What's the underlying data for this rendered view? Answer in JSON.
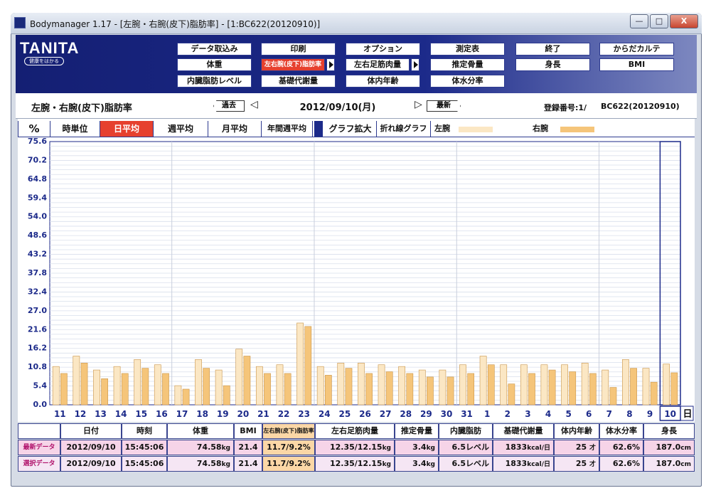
{
  "window": {
    "title": "Bodymanager 1.17 - [左腕・右腕(皮下)脂肪率] - [1:BC622(20120910)]",
    "controls": {
      "minimize": "—",
      "maximize": "□",
      "close": "X"
    }
  },
  "header": {
    "logo": "TANITA",
    "logo_sub": "健康をはかる",
    "buttons": [
      "データ取込み",
      "印刷",
      "オプション",
      "測定表",
      "終了",
      "からだカルテ",
      "体重",
      "左右腕(皮下)脂肪率",
      "左右足筋肉量",
      "推定骨量",
      "身長",
      "BMI",
      "内臓脂肪レベル",
      "基礎代謝量",
      "体内年齢",
      "体水分率"
    ]
  },
  "nav": {
    "page_title": "左腕・右腕(皮下)脂肪率",
    "prev": "過去",
    "date": "2012/09/10(月)",
    "next": "最新",
    "reg_label": "登録番号:1/",
    "reg_value": "BC622(20120910)"
  },
  "tabs": {
    "unit": "%",
    "items": [
      "時単位",
      "日平均",
      "週平均",
      "月平均",
      "年間週平均",
      "グラフ拡大",
      "折れ線グラフ"
    ],
    "legend_left": "左腕",
    "legend_right": "右腕",
    "day_unit": "日"
  },
  "colors": {
    "left_arm": "#fbe7c4",
    "right_arm": "#f5c57a",
    "bar_border": "#c9954a",
    "accent_red": "#e6402e",
    "brand_navy": "#1c2a8a"
  },
  "chart_data": {
    "type": "bar",
    "ylabel": "%",
    "ylim": [
      0,
      75.6
    ],
    "yticks": [
      "75.6",
      "70.2",
      "64.8",
      "59.4",
      "54.0",
      "48.6",
      "43.2",
      "37.8",
      "32.4",
      "27.0",
      "21.6",
      "16.2",
      "10.8",
      "5.4",
      "0.0"
    ],
    "categories": [
      "11",
      "12",
      "13",
      "14",
      "15",
      "16",
      "17",
      "18",
      "19",
      "20",
      "21",
      "22",
      "23",
      "24",
      "25",
      "26",
      "27",
      "28",
      "29",
      "30",
      "31",
      "1",
      "2",
      "3",
      "4",
      "5",
      "6",
      "7",
      "8",
      "9",
      "10"
    ],
    "series": [
      {
        "name": "左腕",
        "values": [
          11.0,
          14.0,
          10.0,
          11.0,
          13.0,
          11.5,
          5.5,
          13.0,
          10.0,
          16.0,
          11.0,
          11.5,
          23.5,
          11.0,
          12.0,
          12.0,
          11.5,
          11.0,
          10.0,
          10.0,
          11.5,
          14.0,
          11.5,
          11.5,
          11.5,
          11.5,
          12.0,
          10.0,
          13.0,
          10.5,
          11.7
        ]
      },
      {
        "name": "右腕",
        "values": [
          9.0,
          12.0,
          7.5,
          9.0,
          10.5,
          9.0,
          4.5,
          10.5,
          5.5,
          14.0,
          9.0,
          9.0,
          22.5,
          8.5,
          10.5,
          9.0,
          9.5,
          9.0,
          8.0,
          8.0,
          9.0,
          11.5,
          6.0,
          9.0,
          10.0,
          9.5,
          9.0,
          5.0,
          10.5,
          6.5,
          9.2
        ]
      }
    ],
    "selected_category": "10"
  },
  "table": {
    "headers": [
      "",
      "日付",
      "時刻",
      "体重",
      "BMI",
      "左右腕(皮下)脂肪率",
      "左右足筋肉量",
      "推定骨量",
      "内臓脂肪",
      "基礎代謝量",
      "体内年齢",
      "体水分率",
      "身長"
    ],
    "rows": [
      {
        "label": "最新データ",
        "date": "2012/09/10",
        "time": "15:45:06",
        "weight": "74.58",
        "weight_unit": "kg",
        "bmi": "21.4",
        "arm_fat": "11.7/9.2%",
        "leg_muscle": "12.35/12.15",
        "leg_unit": "kg",
        "bone": "3.4",
        "bone_unit": "kg",
        "visceral": "6.5レベル",
        "bmr": "1833",
        "bmr_unit": "kcal/日",
        "age": "25",
        "age_unit": "才",
        "water": "62.6%",
        "height": "187.0",
        "height_unit": "cm"
      },
      {
        "label": "選択データ",
        "date": "2012/09/10",
        "time": "15:45:06",
        "weight": "74.58",
        "weight_unit": "kg",
        "bmi": "21.4",
        "arm_fat": "11.7/9.2%",
        "leg_muscle": "12.35/12.15",
        "leg_unit": "kg",
        "bone": "3.4",
        "bone_unit": "kg",
        "visceral": "6.5レベル",
        "bmr": "1833",
        "bmr_unit": "kcal/日",
        "age": "25",
        "age_unit": "才",
        "water": "62.6%",
        "height": "187.0",
        "height_unit": "cm"
      }
    ]
  }
}
